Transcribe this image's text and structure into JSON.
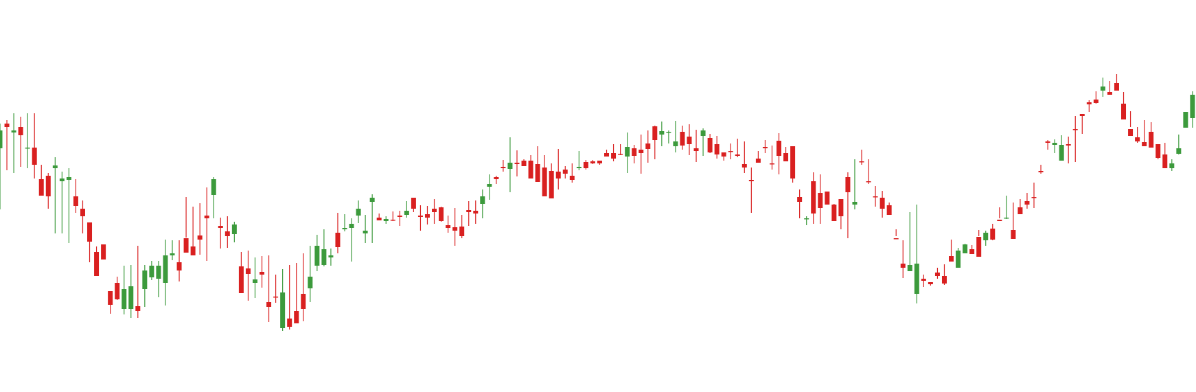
{
  "colors": {
    "background": "#ffffff",
    "up": "#3c9a3c",
    "down": "#d92020"
  },
  "chart_data": {
    "type": "candlestick",
    "title": "",
    "xlabel": "",
    "ylabel": "",
    "ylim": [
      0,
      571
    ],
    "grid": false,
    "legend": "none",
    "candles": [
      [
        216,
        180,
        305,
        190
      ],
      [
        180,
        175,
        248,
        185
      ],
      [
        193,
        165,
        252,
        190
      ],
      [
        185,
        170,
        243,
        197
      ],
      [
        216,
        165,
        245,
        215
      ],
      [
        215,
        165,
        260,
        240
      ],
      [
        261,
        240,
        273,
        285
      ],
      [
        256,
        252,
        304,
        286
      ],
      [
        245,
        229,
        340,
        241
      ],
      [
        264,
        250,
        340,
        260
      ],
      [
        262,
        245,
        354,
        258
      ],
      [
        286,
        261,
        310,
        300
      ],
      [
        304,
        292,
        340,
        315
      ],
      [
        324,
        331,
        382,
        352
      ],
      [
        367,
        359,
        393,
        402
      ],
      [
        356,
        359,
        376,
        378
      ],
      [
        424,
        434,
        457,
        444
      ],
      [
        412,
        403,
        437,
        436
      ],
      [
        450,
        387,
        458,
        421
      ],
      [
        450,
        386,
        463,
        417
      ],
      [
        446,
        358,
        463,
        453
      ],
      [
        421,
        386,
        447,
        394
      ],
      [
        404,
        380,
        408,
        387
      ],
      [
        406,
        380,
        433,
        387
      ],
      [
        412,
        349,
        445,
        372
      ],
      [
        372,
        350,
        379,
        369
      ],
      [
        382,
        350,
        410,
        394
      ],
      [
        347,
        287,
        346,
        368
      ],
      [
        359,
        301,
        366,
        372
      ],
      [
        343,
        296,
        371,
        349
      ],
      [
        314,
        273,
        380,
        318
      ],
      [
        284,
        258,
        318,
        261
      ],
      [
        329,
        317,
        362,
        332
      ],
      [
        337,
        315,
        361,
        344
      ],
      [
        341,
        323,
        353,
        327
      ],
      [
        388,
        367,
        417,
        427
      ],
      [
        391,
        365,
        438,
        399
      ],
      [
        412,
        375,
        434,
        407
      ],
      [
        396,
        373,
        419,
        400
      ],
      [
        440,
        372,
        469,
        447
      ],
      [
        432,
        400,
        441,
        433
      ],
      [
        478,
        392,
        482,
        426
      ],
      [
        464,
        386,
        480,
        476
      ],
      [
        453,
        383,
        465,
        471
      ],
      [
        428,
        369,
        468,
        450
      ],
      [
        420,
        358,
        440,
        403
      ],
      [
        387,
        342,
        395,
        358
      ],
      [
        386,
        334,
        388,
        363
      ],
      [
        375,
        362,
        387,
        372
      ],
      [
        339,
        310,
        369,
        360
      ],
      [
        334,
        312,
        337,
        332
      ],
      [
        332,
        318,
        381,
        326
      ],
      [
        314,
        292,
        325,
        304
      ],
      [
        340,
        313,
        354,
        336
      ],
      [
        294,
        283,
        354,
        288
      ],
      [
        317,
        311,
        319,
        321
      ],
      [
        322,
        315,
        326,
        319
      ],
      [
        320,
        308,
        322,
        321
      ],
      [
        314,
        307,
        329,
        316
      ],
      [
        313,
        293,
        317,
        307
      ],
      [
        288,
        296,
        309,
        304
      ],
      [
        314,
        299,
        336,
        316
      ],
      [
        312,
        300,
        327,
        317
      ],
      [
        304,
        290,
        326,
        309
      ],
      [
        302,
        301,
        323,
        322
      ],
      [
        328,
        314,
        339,
        332
      ],
      [
        331,
        303,
        358,
        336
      ],
      [
        330,
        313,
        347,
        344
      ],
      [
        306,
        293,
        329,
        309
      ],
      [
        307,
        292,
        326,
        311
      ],
      [
        297,
        276,
        318,
        286
      ],
      [
        272,
        254,
        291,
        268
      ],
      [
        258,
        256,
        268,
        261
      ],
      [
        243,
        233,
        250,
        245
      ],
      [
        246,
        200,
        280,
        237
      ],
      [
        237,
        219,
        257,
        239
      ],
      [
        234,
        232,
        240,
        242
      ],
      [
        234,
        226,
        256,
        260
      ],
      [
        239,
        213,
        248,
        265
      ],
      [
        244,
        226,
        260,
        286
      ],
      [
        249,
        238,
        264,
        289
      ],
      [
        250,
        217,
        276,
        260
      ],
      [
        247,
        242,
        260,
        253
      ],
      [
        256,
        238,
        266,
        262
      ],
      [
        245,
        220,
        248,
        243
      ],
      [
        236,
        233,
        247,
        245
      ],
      [
        235,
        233,
        239,
        238
      ],
      [
        234,
        236,
        240,
        238
      ],
      [
        223,
        218,
        228,
        228
      ],
      [
        223,
        210,
        235,
        231
      ],
      [
        224,
        210,
        226,
        225
      ],
      [
        228,
        193,
        252,
        214
      ],
      [
        216,
        211,
        238,
        227
      ],
      [
        218,
        196,
        253,
        223
      ],
      [
        209,
        190,
        237,
        217
      ],
      [
        184,
        183,
        232,
        204
      ],
      [
        196,
        177,
        213,
        191
      ],
      [
        193,
        190,
        209,
        192
      ],
      [
        213,
        176,
        222,
        206
      ],
      [
        192,
        183,
        218,
        212
      ],
      [
        199,
        181,
        226,
        210
      ],
      [
        216,
        189,
        236,
        220
      ],
      [
        198,
        187,
        227,
        190
      ],
      [
        201,
        195,
        223,
        222
      ],
      [
        210,
        198,
        231,
        225
      ],
      [
        222,
        225,
        234,
        228
      ],
      [
        220,
        209,
        232,
        221
      ],
      [
        225,
        202,
        229,
        227
      ],
      [
        239,
        206,
        252,
        244
      ],
      [
        262,
        244,
        310,
        264
      ],
      [
        231,
        220,
        233,
        237
      ],
      [
        214,
        204,
        223,
        216
      ],
      [
        238,
        212,
        247,
        238
      ],
      [
        205,
        194,
        254,
        227
      ],
      [
        223,
        214,
        233,
        235
      ],
      [
        213,
        220,
        266,
        260
      ],
      [
        287,
        276,
        318,
        294
      ],
      [
        319,
        315,
        328,
        318
      ],
      [
        264,
        251,
        326,
        311
      ],
      [
        281,
        254,
        326,
        303
      ],
      [
        279,
        282,
        285,
        298
      ],
      [
        298,
        297,
        317,
        322
      ],
      [
        290,
        296,
        334,
        315
      ],
      [
        258,
        251,
        347,
        280
      ],
      [
        298,
        232,
        305,
        294
      ],
      [
        235,
        218,
        240,
        236
      ],
      [
        264,
        232,
        268,
        265
      ],
      [
        286,
        271,
        301,
        287
      ],
      [
        288,
        278,
        317,
        304
      ],
      [
        299,
        295,
        312,
        313
      ],
      [
        347,
        334,
        344,
        348
      ],
      [
        384,
        350,
        405,
        390
      ],
      [
        395,
        309,
        387,
        386
      ],
      [
        428,
        298,
        442,
        384
      ],
      [
        406,
        400,
        418,
        409
      ],
      [
        411,
        411,
        416,
        414
      ],
      [
        397,
        390,
        406,
        402
      ],
      [
        402,
        385,
        415,
        413
      ],
      [
        373,
        349,
        376,
        381
      ],
      [
        390,
        361,
        386,
        365
      ],
      [
        369,
        355,
        359,
        356
      ],
      [
        363,
        357,
        363,
        370
      ],
      [
        345,
        335,
        344,
        374
      ],
      [
        350,
        336,
        358,
        339
      ],
      [
        333,
        326,
        350,
        349
      ],
      [
        320,
        302,
        318,
        322
      ],
      [
        318,
        285,
        319,
        317
      ],
      [
        335,
        295,
        337,
        348
      ],
      [
        302,
        290,
        304,
        312
      ],
      [
        293,
        281,
        304,
        298
      ],
      [
        287,
        266,
        303,
        288
      ],
      [
        249,
        240,
        253,
        251
      ],
      [
        206,
        204,
        218,
        208
      ],
      [
        211,
        203,
        223,
        208
      ],
      [
        234,
        197,
        219,
        211
      ],
      [
        210,
        199,
        238,
        212
      ],
      [
        188,
        169,
        236,
        188
      ],
      [
        166,
        166,
        195,
        169
      ],
      [
        149,
        146,
        163,
        152
      ],
      [
        145,
        133,
        151,
        150
      ],
      [
        132,
        113,
        141,
        126
      ],
      [
        134,
        118,
        134,
        138
      ],
      [
        121,
        108,
        127,
        132
      ],
      [
        151,
        134,
        152,
        174
      ],
      [
        188,
        162,
        185,
        198
      ],
      [
        200,
        185,
        208,
        206
      ],
      [
        207,
        175,
        212,
        213
      ],
      [
        192,
        178,
        215,
        215
      ],
      [
        210,
        215,
        232,
        230
      ],
      [
        225,
        208,
        236,
        245
      ],
      [
        245,
        232,
        249,
        238
      ],
      [
        224,
        196,
        225,
        216
      ],
      [
        186,
        163,
        186,
        163
      ],
      [
        172,
        133,
        186,
        138
      ],
      [
        128,
        107,
        174,
        142
      ],
      [
        168,
        119,
        170,
        149
      ],
      [
        144,
        118,
        140,
        145
      ],
      [
        126,
        91,
        176,
        129
      ]
    ]
  }
}
